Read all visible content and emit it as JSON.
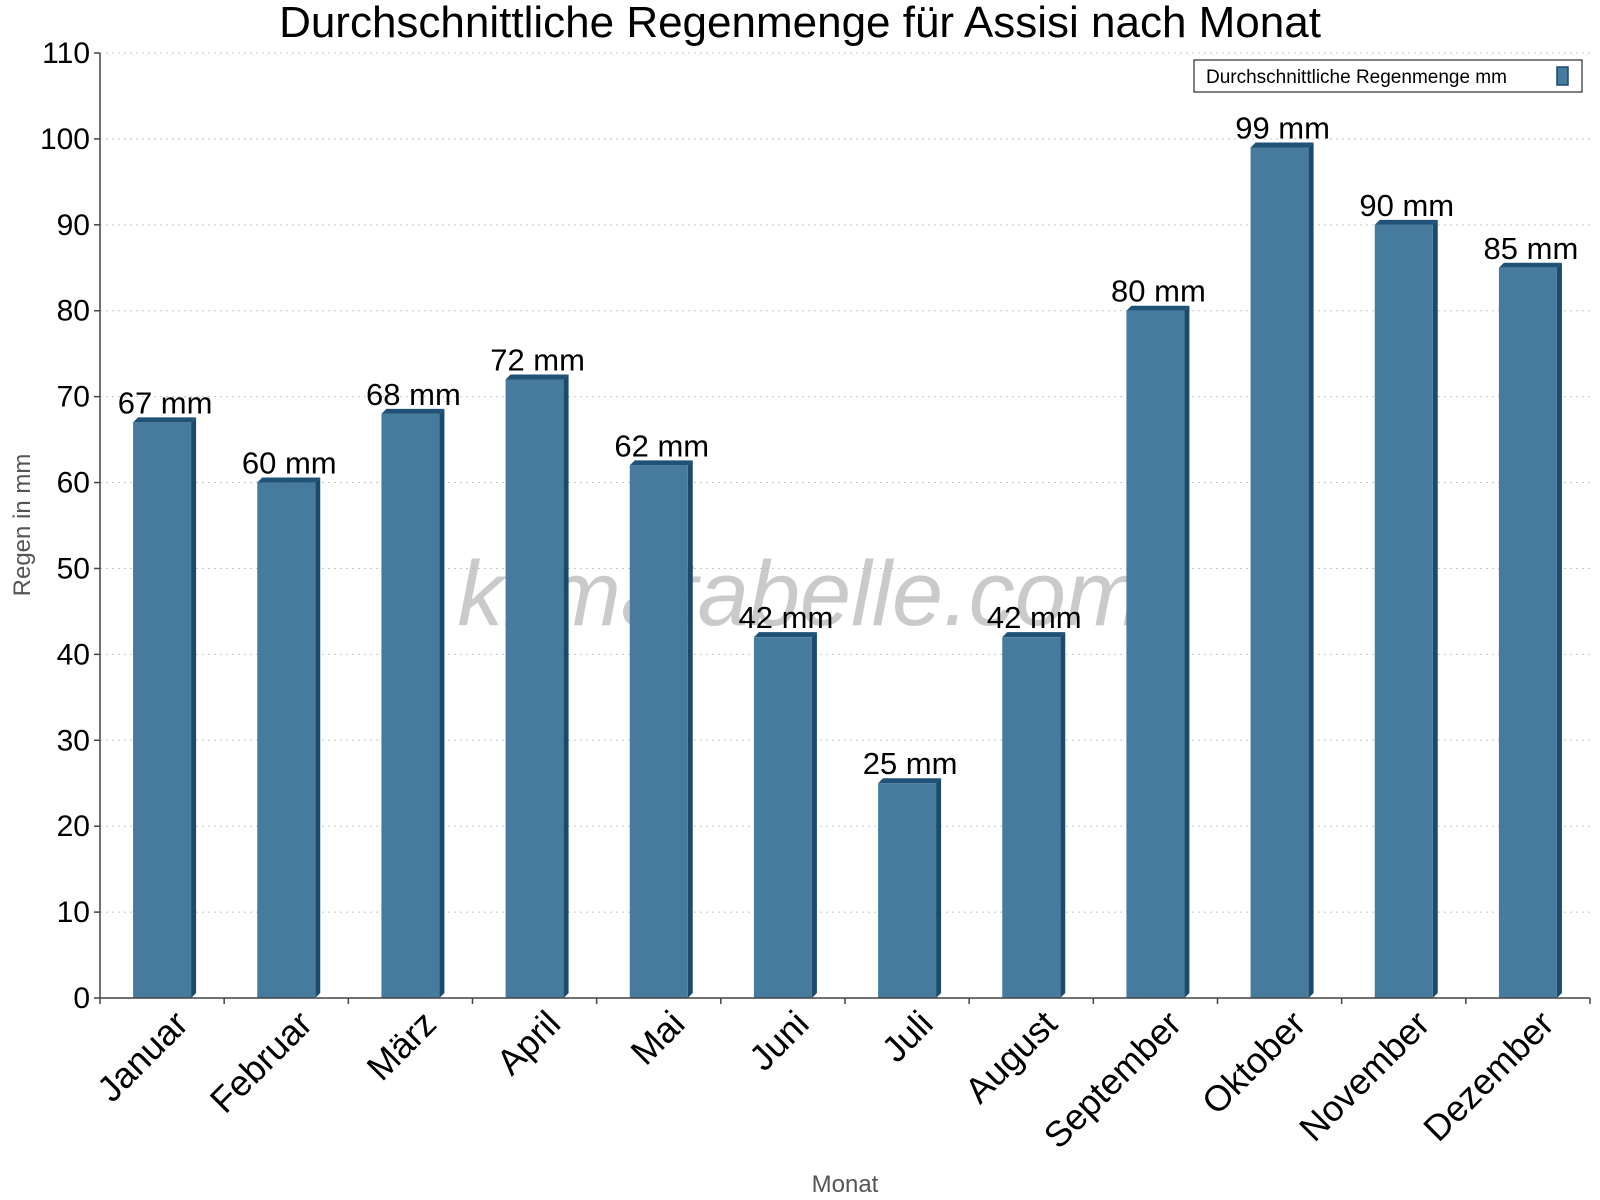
{
  "colors": {
    "bar_front": "#467b9d",
    "bar_side": "#1b4a6b",
    "bar_top": "#1f5276",
    "grid": "#c8c8c8",
    "axis": "#444444"
  },
  "watermark": "klimatabelle.com",
  "chart_data": {
    "type": "bar",
    "title": "Durchschnittliche Regenmenge für Assisi nach Monat",
    "xlabel": "Monat",
    "ylabel": "Regen in mm",
    "ylim": [
      0,
      110
    ],
    "yticks": [
      "0",
      "10",
      "20",
      "30",
      "40",
      "50",
      "60",
      "70",
      "80",
      "90",
      "100",
      "110"
    ],
    "grid": true,
    "legend_position": "top-right",
    "categories": [
      "Januar",
      "Februar",
      "März",
      "April",
      "Mai",
      "Juni",
      "Juli",
      "August",
      "September",
      "Oktober",
      "November",
      "Dezember"
    ],
    "series": [
      {
        "name": "Durchschnittliche Regenmenge mm",
        "values": [
          67,
          60,
          68,
          72,
          62,
          42,
          25,
          42,
          80,
          99,
          90,
          85
        ],
        "labels": [
          "67 mm",
          "60 mm",
          "68 mm",
          "72 mm",
          "62 mm",
          "42 mm",
          "25 mm",
          "42 mm",
          "80 mm",
          "99 mm",
          "90 mm",
          "85 mm"
        ]
      }
    ]
  }
}
